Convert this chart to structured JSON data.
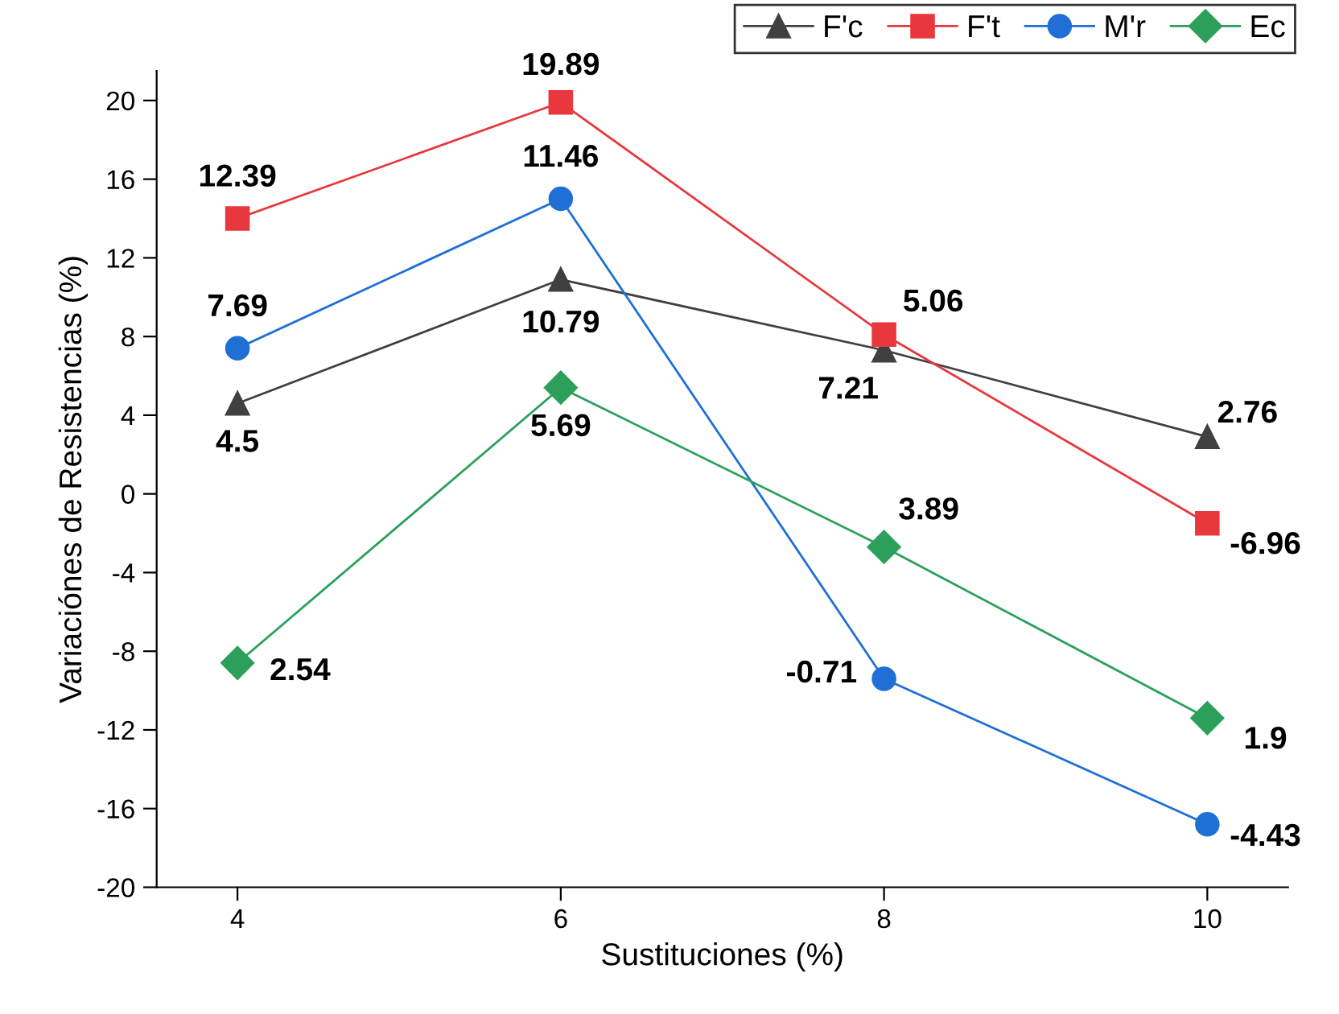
{
  "chart_data": {
    "type": "line",
    "xlabel": "Sustituciones (%)",
    "ylabel": "Variaciónes de Resistencias (%)",
    "x": [
      4,
      6,
      8,
      10
    ],
    "xlim": [
      3.5,
      10.5
    ],
    "xticks": [
      4,
      6,
      8,
      10
    ],
    "ylim": [
      -20,
      21.5
    ],
    "yticks": [
      -20,
      -16,
      -12,
      -8,
      -4,
      0,
      4,
      8,
      12,
      16,
      20
    ],
    "grid": false,
    "legend": "top right",
    "series": [
      {
        "name": "F'c",
        "color": "#404040",
        "marker": "triangle",
        "values": [
          4.6,
          10.9,
          7.3,
          2.9
        ]
      },
      {
        "name": "F't",
        "color": "#e8383d",
        "marker": "square",
        "values": [
          14.0,
          19.9,
          8.1,
          -1.5
        ]
      },
      {
        "name": "M'r",
        "color": "#1f6fd6",
        "marker": "circle",
        "values": [
          7.4,
          15.0,
          -9.4,
          -16.8
        ]
      },
      {
        "name": "Ec",
        "color": "#2ca05a",
        "marker": "diamond",
        "values": [
          -8.6,
          5.4,
          -2.7,
          -11.4
        ]
      }
    ],
    "annotations": [
      {
        "text": "4.5",
        "x": 4,
        "y": 4.6
      },
      {
        "text": "10.79",
        "x": 6,
        "y": 10.9
      },
      {
        "text": "7.21",
        "x": 8,
        "y": 7.3
      },
      {
        "text": "2.76",
        "x": 10,
        "y": 2.9
      },
      {
        "text": "12.39",
        "x": 4,
        "y": 14.0
      },
      {
        "text": "19.89",
        "x": 6,
        "y": 19.9
      },
      {
        "text": "5.06",
        "x": 8,
        "y": 8.1
      },
      {
        "text": "-6.96",
        "x": 10,
        "y": -1.5
      },
      {
        "text": "7.69",
        "x": 4,
        "y": 7.4
      },
      {
        "text": "11.46",
        "x": 6,
        "y": 15.0
      },
      {
        "text": "-0.71",
        "x": 8,
        "y": -9.4
      },
      {
        "text": "-4.43",
        "x": 10,
        "y": -16.8
      },
      {
        "text": "2.54",
        "x": 4,
        "y": -8.6
      },
      {
        "text": "5.69",
        "x": 6,
        "y": 5.4
      },
      {
        "text": "3.89",
        "x": 8,
        "y": -2.7
      },
      {
        "text": "1.9",
        "x": 10,
        "y": -11.4
      }
    ]
  }
}
